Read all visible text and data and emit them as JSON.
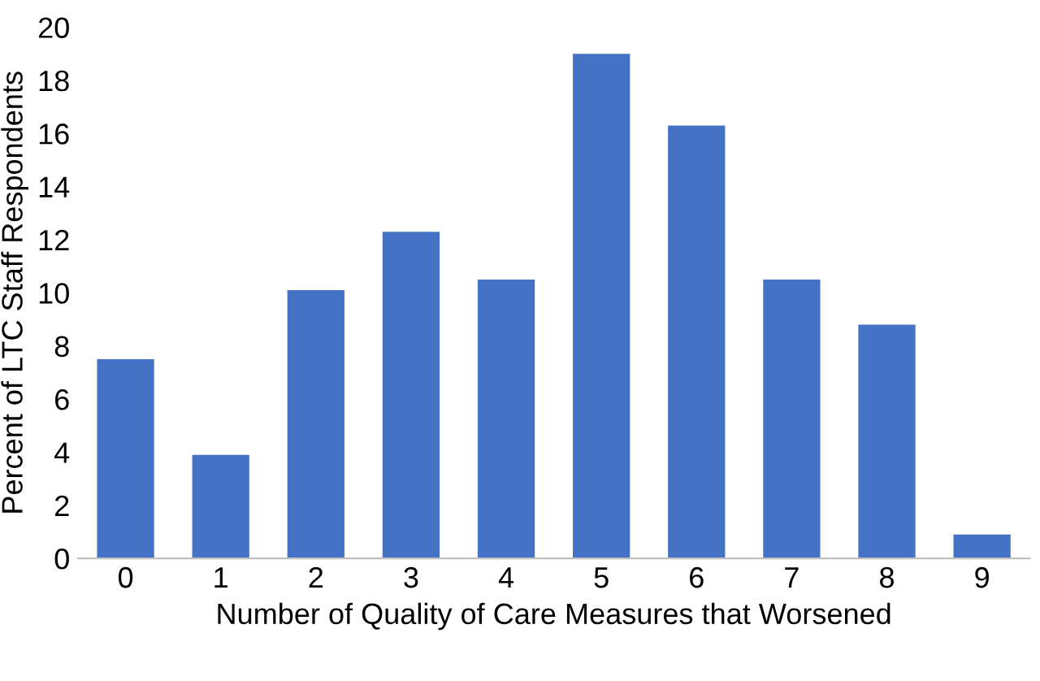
{
  "chart_data": {
    "type": "bar",
    "xlabel": "Number of Quality of Care Measures that Worsened",
    "ylabel": "Percent of LTC Staff Respondents",
    "categories": [
      "0",
      "1",
      "2",
      "3",
      "4",
      "5",
      "6",
      "7",
      "8",
      "9"
    ],
    "values": [
      7.5,
      3.9,
      10.1,
      12.3,
      10.5,
      19.0,
      16.3,
      10.5,
      8.8,
      0.9
    ],
    "color": "#4472c4",
    "ylim": [
      0,
      20
    ],
    "yticks": [
      0,
      2,
      4,
      6,
      8,
      10,
      12,
      14,
      16,
      18,
      20
    ],
    "grid": false
  }
}
